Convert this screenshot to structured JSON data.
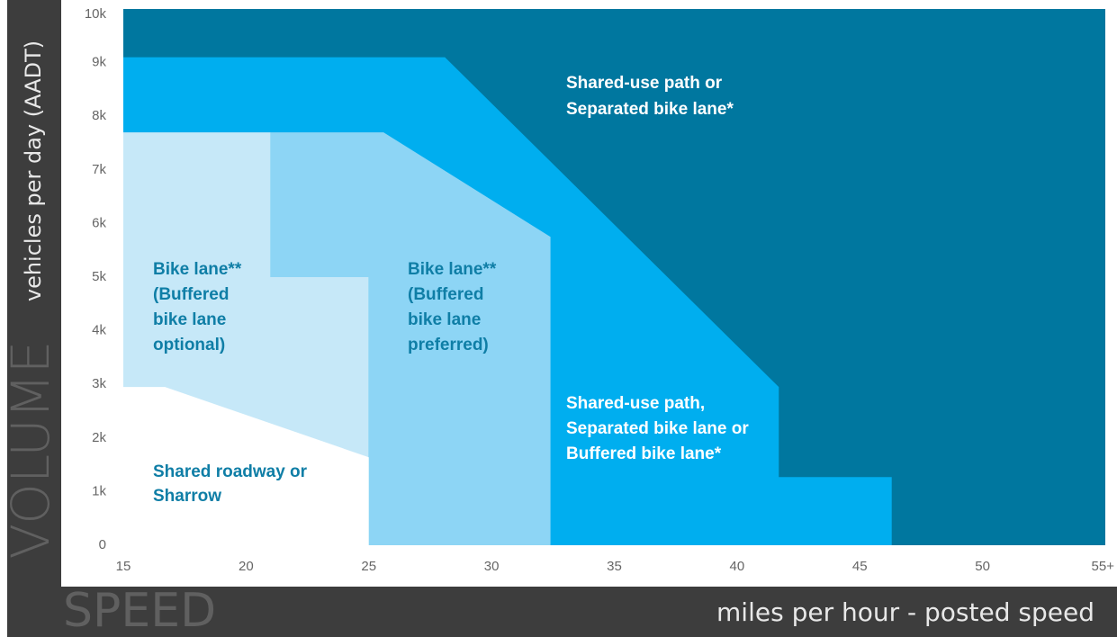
{
  "chart_data": {
    "type": "region",
    "y_axis_title": "VOLUME",
    "y_axis_label": "vehicles per day (AADT)",
    "x_axis_title": "SPEED",
    "x_axis_label": "miles per hour - posted speed",
    "xlim": [
      15,
      55
    ],
    "xticks": [
      15,
      20,
      25,
      30,
      35,
      40,
      45,
      50,
      {
        "value": 55,
        "label": "55+"
      }
    ],
    "ylim": [
      0,
      10000
    ],
    "yticks": [
      0,
      {
        "value": 1000,
        "label": "1k"
      },
      {
        "value": 2000,
        "label": "2k"
      },
      {
        "value": 3000,
        "label": "3k"
      },
      {
        "value": 4000,
        "label": "4k"
      },
      {
        "value": 5000,
        "label": "5k"
      },
      {
        "value": 6000,
        "label": "6k"
      },
      {
        "value": 7000,
        "label": "7k"
      },
      {
        "value": 8000,
        "label": "8k"
      },
      {
        "value": 9000,
        "label": "9k"
      },
      {
        "value": 10000,
        "label": "10k"
      }
    ],
    "regions": [
      {
        "label": [
          "Shared-use path or",
          "Separated bike lane*"
        ],
        "color": "#00779f",
        "label_color": "#ffffff",
        "x": [
          15,
          15,
          55,
          55
        ],
        "y": [
          0,
          10000,
          10000,
          0
        ]
      },
      {
        "label": [
          "Shared-use path,",
          "Separated bike lane or",
          "Buffered bike lane*"
        ],
        "color": "#00aeef",
        "label_color": "#ffffff",
        "x": [
          15,
          15,
          28.1,
          41.7,
          41.7,
          46.3,
          46.3
        ],
        "y": [
          0,
          9100,
          9100,
          2950,
          1270,
          1270,
          0
        ]
      },
      {
        "label": [
          "Bike lane**",
          "(Buffered",
          "bike lane",
          "optional)"
        ],
        "color": "#c6e8f8",
        "label_color": "#0f7ea6",
        "x": [
          15,
          15,
          21,
          21,
          25,
          25
        ],
        "y": [
          0,
          7700,
          7700,
          5000,
          5000,
          0
        ]
      },
      {
        "label": [
          "Bike lane**",
          "(Buffered",
          "bike lane",
          "preferred)"
        ],
        "color": "#8dd5f5",
        "label_color": "#0f7ea6",
        "x": [
          25,
          25,
          21,
          21,
          25.6,
          32.4,
          32.4
        ],
        "y": [
          0,
          5000,
          5000,
          7700,
          7700,
          5750,
          0
        ]
      },
      {
        "label": [
          "Shared roadway or",
          "Sharrow"
        ],
        "color": "#ffffff",
        "label_color": "#0f7ea6",
        "x": [
          15,
          15,
          16.7,
          25,
          25
        ],
        "y": [
          0,
          2950,
          2950,
          1640,
          0
        ]
      }
    ]
  }
}
